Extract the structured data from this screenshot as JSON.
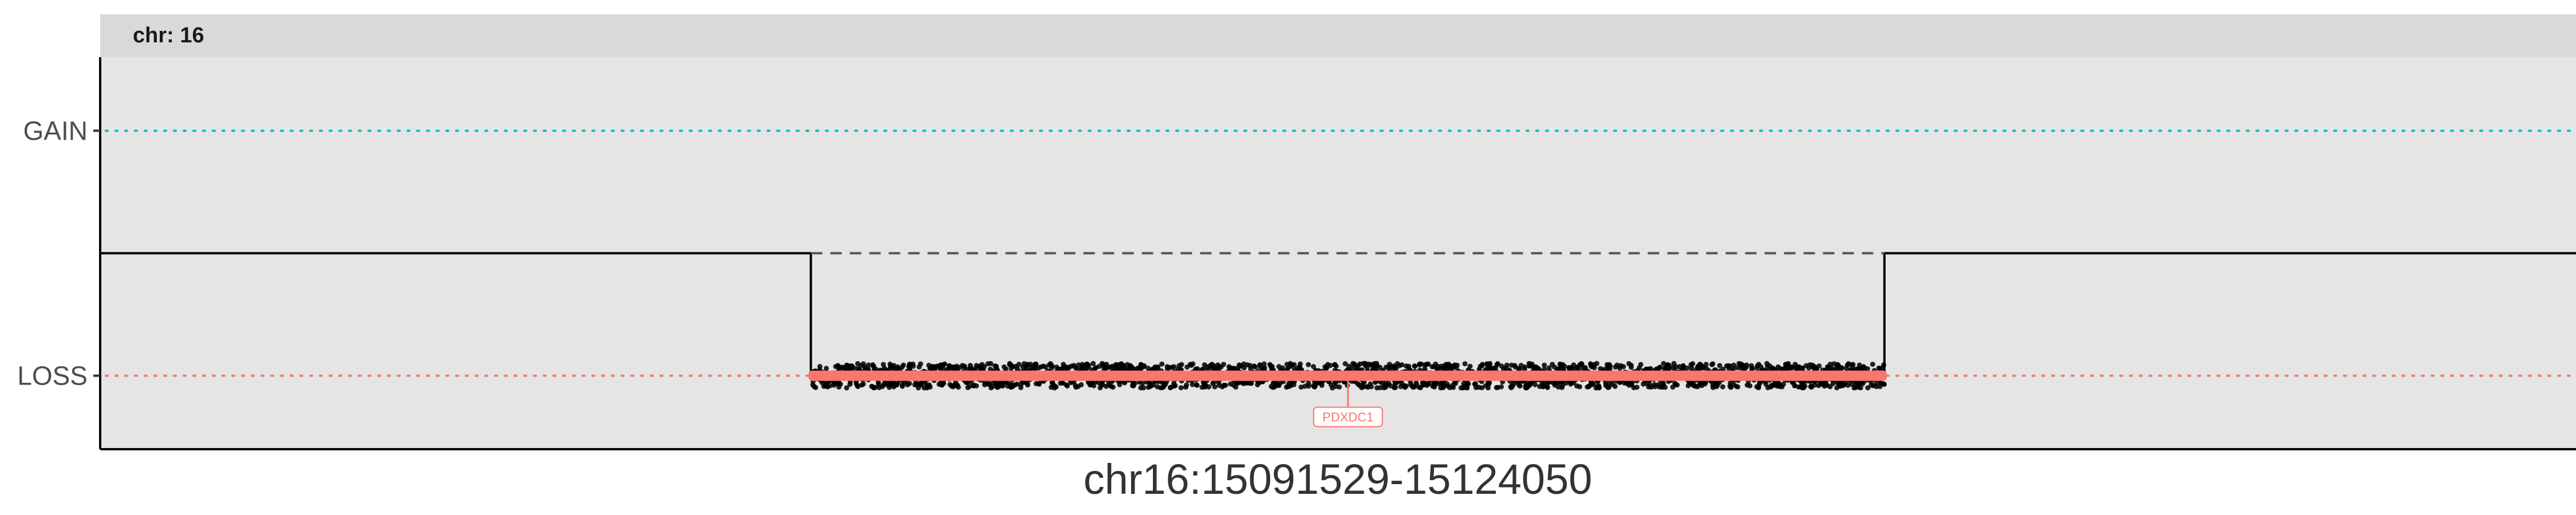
{
  "chart_data": {
    "type": "scatter",
    "facet_label": "chr: 16",
    "xlabel": "chr16:15091529-15124050",
    "ylabel": "",
    "xlim": [
      15070000,
      15145000
    ],
    "ylim": [
      -1.6,
      1.6
    ],
    "y_categories": [
      {
        "label": "GAIN",
        "value": 1,
        "color": "#00bfc4"
      },
      {
        "label": "LOSS",
        "value": -1,
        "color": "#f8766d"
      }
    ],
    "baseline": 0,
    "segment": {
      "start": 15091529,
      "end": 15124050,
      "value": -1,
      "state": "LOSS",
      "color": "#f8766d",
      "step_line_color": "#000000",
      "dashed_reference_color": "#555555"
    },
    "points": {
      "description_count": 2200,
      "x_range": [
        15091529,
        15124050
      ],
      "y_center": -1,
      "y_jitter": 0.1,
      "color": "#000000"
    },
    "genes": [
      {
        "name": "PDXDC1",
        "x": 15107800,
        "color": "#f8766d"
      }
    ],
    "panel_background": "#e5e5e5",
    "strip_background": "#d9d9d9",
    "grid": false
  }
}
